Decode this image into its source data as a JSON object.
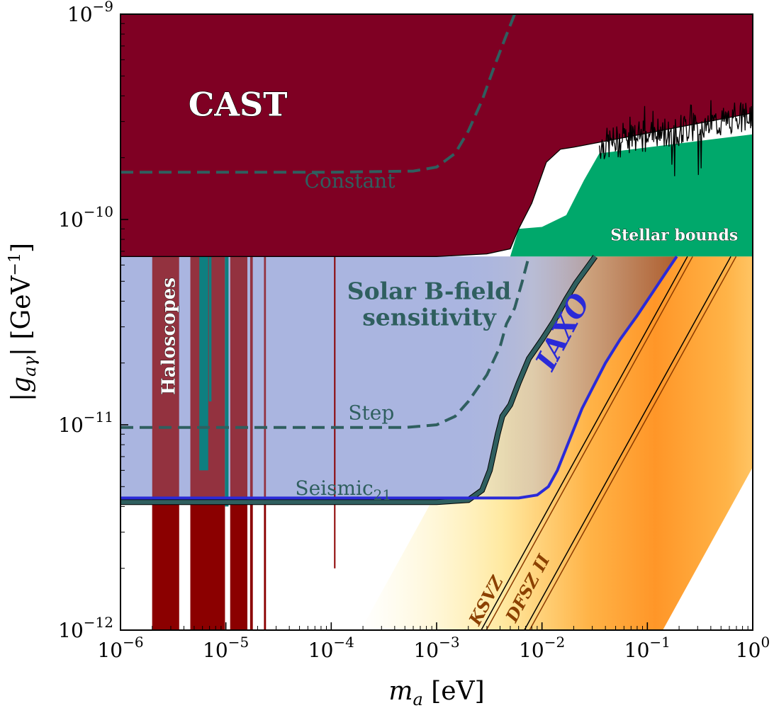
{
  "chart_data": {
    "type": "area",
    "title": "",
    "xlabel": "m_a [eV]",
    "ylabel": "|g_aγ| [GeV^-1]",
    "xscale": "log",
    "yscale": "log",
    "xlim": [
      1e-06,
      1
    ],
    "ylim": [
      1e-12,
      1e-09
    ],
    "grid": false,
    "x_ticks": [
      {
        "value": 1e-06,
        "base": "10",
        "exp": "−6"
      },
      {
        "value": 1e-05,
        "base": "10",
        "exp": "−5"
      },
      {
        "value": 0.0001,
        "base": "10",
        "exp": "−4"
      },
      {
        "value": 0.001,
        "base": "10",
        "exp": "−3"
      },
      {
        "value": 0.01,
        "base": "10",
        "exp": "−2"
      },
      {
        "value": 0.1,
        "base": "10",
        "exp": "−1"
      },
      {
        "value": 1,
        "base": "10",
        "exp": "0"
      }
    ],
    "y_ticks": [
      {
        "value": 1e-12,
        "base": "10",
        "exp": "−12"
      },
      {
        "value": 1e-11,
        "base": "10",
        "exp": "−11"
      },
      {
        "value": 1e-10,
        "base": "10",
        "exp": "−10"
      },
      {
        "value": 1e-09,
        "base": "10",
        "exp": "−9"
      }
    ],
    "regions": [
      {
        "name": "CAST",
        "color": "#7f0023",
        "boundary": [
          [
            1e-06,
            6.6e-11
          ],
          [
            0.001,
            6.6e-11
          ],
          [
            0.003,
            6.8e-11
          ],
          [
            0.005,
            7.2e-11
          ],
          [
            0.006,
            9e-11
          ],
          [
            0.008,
            1.2e-10
          ],
          [
            0.011,
            1.9e-10
          ],
          [
            0.015,
            2.2e-10
          ],
          [
            0.02,
            2.25e-10
          ],
          [
            1,
            3.3e-10
          ]
        ]
      },
      {
        "name": "Stellar bounds",
        "color": "#00a86b",
        "boundary": [
          [
            0.005,
            6.6e-11
          ],
          [
            0.006,
            9e-11
          ],
          [
            0.01,
            9.2e-11
          ],
          [
            0.017,
            1.05e-10
          ],
          [
            0.025,
            1.55e-10
          ],
          [
            0.035,
            2.1e-10
          ],
          [
            1,
            2.6e-10
          ]
        ]
      },
      {
        "name": "Solar B-field sensitivity",
        "color": "#aab5e0",
        "lower": 4.2e-12,
        "upper": 6.6e-11
      },
      {
        "name": "Haloscopes",
        "color": "#8b0000",
        "bands_x": [
          [
            2e-06,
            3.6e-06
          ],
          [
            4.6e-06,
            9.8e-06
          ],
          [
            1.1e-05,
            1.6e-05
          ],
          [
            1.7e-05,
            1.8e-05
          ],
          [
            2.3e-05,
            2.4e-05
          ]
        ],
        "line_x": 0.000108,
        "line_ymin": 2e-12
      }
    ],
    "series": [
      {
        "name": "Constant",
        "color": "#2f5f5f",
        "style": "dashed",
        "x": [
          1e-06,
          0.0001,
          0.0006,
          0.001,
          0.0015,
          0.002,
          0.0027,
          0.0035,
          0.0045,
          0.0055
        ],
        "y": [
          1.7e-10,
          1.7e-10,
          1.72e-10,
          1.8e-10,
          2.1e-10,
          2.7e-10,
          3.8e-10,
          5.5e-10,
          7.7e-10,
          1e-09
        ]
      },
      {
        "name": "Step",
        "color": "#2f5f5f",
        "style": "dashed",
        "x": [
          1e-06,
          0.0005,
          0.001,
          0.0015,
          0.002,
          0.003,
          0.004,
          0.0046,
          0.0055,
          0.0065,
          0.0075
        ],
        "y": [
          9.7e-12,
          9.7e-12,
          1e-11,
          1.1e-11,
          1.3e-11,
          1.75e-11,
          2.4e-11,
          3.1e-11,
          3.7e-11,
          5e-11,
          6.6e-11
        ]
      },
      {
        "name": "Seismic",
        "label_sub": "21",
        "color": "#2f5f5f",
        "style": "solid",
        "x": [
          1e-06,
          0.001,
          0.002,
          0.0027,
          0.0032,
          0.0038,
          0.0042,
          0.005,
          0.006,
          0.0075,
          0.01,
          0.013,
          0.017,
          0.021,
          0.026,
          0.032
        ],
        "y": [
          4.2e-12,
          4.2e-12,
          4.3e-12,
          4.8e-12,
          6e-12,
          9e-12,
          1.1e-11,
          1.25e-11,
          1.6e-11,
          2.1e-11,
          2.6e-11,
          3.2e-11,
          4.1e-11,
          4.9e-11,
          5.7e-11,
          6.6e-11
        ]
      },
      {
        "name": "IAXO",
        "color": "#2a2ad8",
        "style": "solid",
        "x": [
          1e-06,
          0.003,
          0.006,
          0.009,
          0.0115,
          0.014,
          0.017,
          0.02,
          0.024,
          0.03,
          0.04,
          0.055,
          0.08,
          0.115,
          0.16,
          0.19
        ],
        "y": [
          4.4e-12,
          4.4e-12,
          4.4e-12,
          4.55e-12,
          5e-12,
          6e-12,
          7.7e-12,
          9.5e-12,
          1.2e-11,
          1.5e-11,
          2e-11,
          2.6e-11,
          3.4e-11,
          4.5e-11,
          5.8e-11,
          6.6e-11
        ]
      },
      {
        "name": "KSVZ",
        "color": "#000000",
        "style": "solid",
        "x": [
          0.00265,
          0.24
        ],
        "y": [
          1e-12,
          6.6e-11
        ]
      },
      {
        "name": "DFSZ II",
        "color": "#000000",
        "style": "solid",
        "x": [
          0.0068,
          0.62
        ],
        "y": [
          1e-12,
          6.6e-11
        ]
      }
    ],
    "annotations": [
      {
        "text": "CAST",
        "color": "#ffffff"
      },
      {
        "text": "Constant",
        "color": "#2f5f5f"
      },
      {
        "text": "Stellar bounds",
        "color": "#ffffff"
      },
      {
        "text": "Solar B-field",
        "color": "#2f5f5f"
      },
      {
        "text": "sensitivity",
        "color": "#2f5f5f"
      },
      {
        "text": "Haloscopes",
        "color": "#ffffff"
      },
      {
        "text": "IAXO",
        "color": "#2a2ad8"
      },
      {
        "text": "Step",
        "color": "#2f5f5f"
      },
      {
        "text": "Seismic",
        "color": "#2f5f5f"
      },
      {
        "text": "KSVZ",
        "color": "#8b4000"
      },
      {
        "text": "DFSZ II",
        "color": "#8b4000"
      }
    ]
  }
}
